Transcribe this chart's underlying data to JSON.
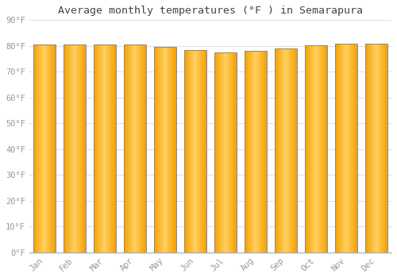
{
  "title": "Average monthly temperatures (°F ) in Semarapura",
  "months": [
    "Jan",
    "Feb",
    "Mar",
    "Apr",
    "May",
    "Jun",
    "Jul",
    "Aug",
    "Sep",
    "Oct",
    "Nov",
    "Dec"
  ],
  "values": [
    80.6,
    80.6,
    80.6,
    80.6,
    79.7,
    78.4,
    77.5,
    78.1,
    79.0,
    80.1,
    80.8,
    81.0
  ],
  "ylim": [
    0,
    90
  ],
  "yticks": [
    0,
    10,
    20,
    30,
    40,
    50,
    60,
    70,
    80,
    90
  ],
  "bar_color_edge": "#F5A000",
  "bar_color_center": "#FFD060",
  "bar_border_color": "#888899",
  "background_color": "#FFFFFF",
  "grid_color": "#E0E0E0",
  "tick_color": "#999999",
  "title_color": "#444444",
  "font_family": "monospace",
  "bar_width": 0.75,
  "figsize": [
    5.0,
    3.5
  ],
  "dpi": 100
}
